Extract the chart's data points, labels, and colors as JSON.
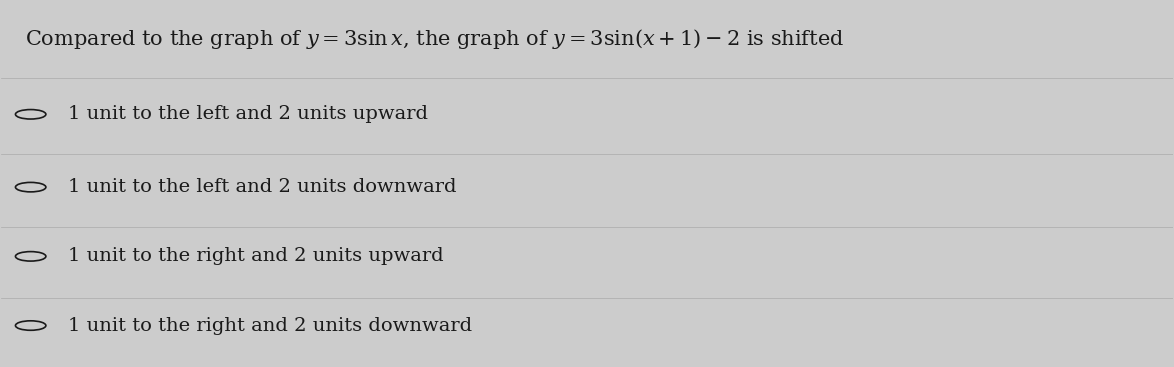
{
  "background_color": "#cccccc",
  "question": "Compared to the graph of $y = 3\\sin x$, the graph of $y = 3\\sin(x+1) - 2$ is shifted",
  "options": [
    "1 unit to the left and 2 units upward",
    "1 unit to the left and 2 units downward",
    "1 unit to the right and 2 units upward",
    "1 unit to the right and 2 units downward"
  ],
  "text_color": "#1a1a1a",
  "circle_color": "#1a1a1a",
  "divider_color": "#aaaaaa",
  "font_size_question": 15,
  "font_size_options": 14,
  "figsize": [
    11.74,
    3.67
  ],
  "dpi": 100
}
